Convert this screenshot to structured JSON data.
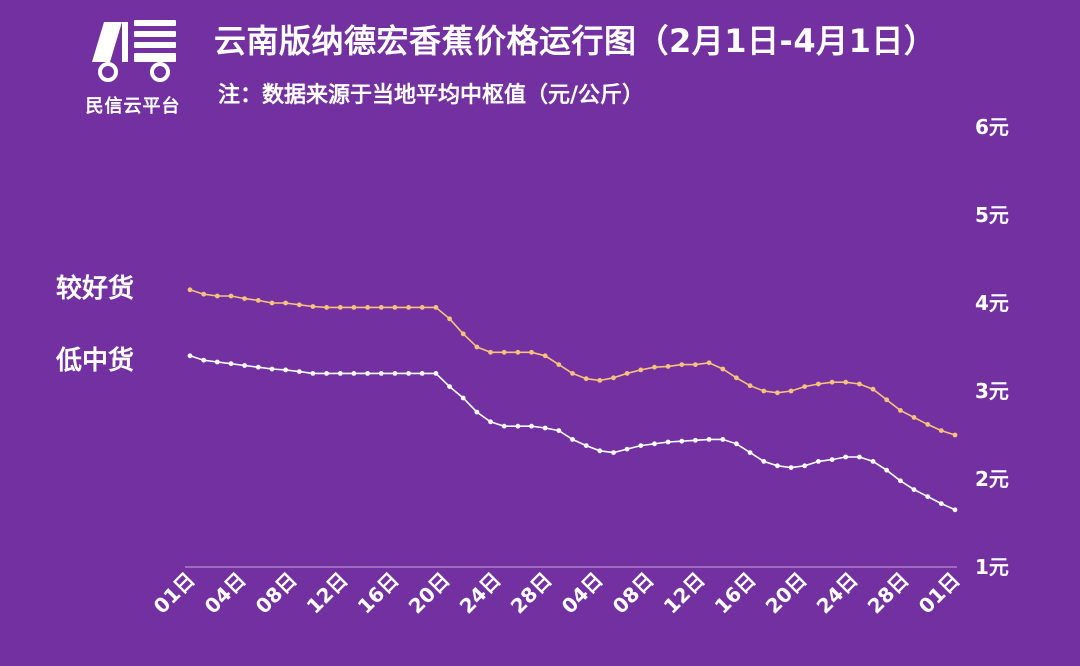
{
  "logo": {
    "text": "民信云平台"
  },
  "title": "云南版纳德宏香蕉价格运行图（2月1日-4月1日）",
  "subtitle": "注：数据来源于当地平均中枢值（元/公斤）",
  "colors": {
    "background": "#7330a0",
    "series_good": "#f6c27c",
    "series_low": "#ffffff"
  },
  "chart_data": {
    "type": "line",
    "title": "云南版纳德宏香蕉价格运行图（2月1日-4月1日）",
    "ylabel": "",
    "xlabel": "",
    "ylim": [
      1,
      6
    ],
    "y_ticks": [
      "1元",
      "2元",
      "3元",
      "4元",
      "5元",
      "6元"
    ],
    "x_ticks": [
      "01日",
      "04日",
      "08日",
      "12日",
      "16日",
      "20日",
      "24日",
      "28日",
      "04日",
      "08日",
      "12日",
      "16日",
      "20日",
      "24日",
      "28日",
      "01日"
    ],
    "grid": false,
    "legend": "left",
    "series": [
      {
        "name": "较好货",
        "values": [
          4.15,
          4.1,
          4.08,
          4.08,
          4.05,
          4.03,
          4.0,
          4.0,
          3.98,
          3.96,
          3.95,
          3.95,
          3.95,
          3.95,
          3.95,
          3.95,
          3.95,
          3.95,
          3.95,
          3.82,
          3.65,
          3.5,
          3.44,
          3.44,
          3.44,
          3.44,
          3.4,
          3.3,
          3.2,
          3.14,
          3.12,
          3.15,
          3.2,
          3.24,
          3.27,
          3.28,
          3.3,
          3.3,
          3.32,
          3.25,
          3.15,
          3.06,
          3.0,
          2.98,
          3.0,
          3.05,
          3.08,
          3.1,
          3.1,
          3.08,
          3.02,
          2.9,
          2.78,
          2.7,
          2.62,
          2.55,
          2.5
        ]
      },
      {
        "name": "低中货",
        "values": [
          3.4,
          3.35,
          3.33,
          3.31,
          3.29,
          3.27,
          3.25,
          3.24,
          3.22,
          3.2,
          3.2,
          3.2,
          3.2,
          3.2,
          3.2,
          3.2,
          3.2,
          3.2,
          3.2,
          3.05,
          2.92,
          2.76,
          2.65,
          2.6,
          2.6,
          2.6,
          2.58,
          2.55,
          2.45,
          2.38,
          2.32,
          2.3,
          2.34,
          2.38,
          2.4,
          2.42,
          2.43,
          2.44,
          2.45,
          2.45,
          2.4,
          2.3,
          2.2,
          2.15,
          2.13,
          2.15,
          2.2,
          2.22,
          2.25,
          2.25,
          2.2,
          2.1,
          1.98,
          1.88,
          1.8,
          1.72,
          1.65
        ]
      }
    ]
  }
}
